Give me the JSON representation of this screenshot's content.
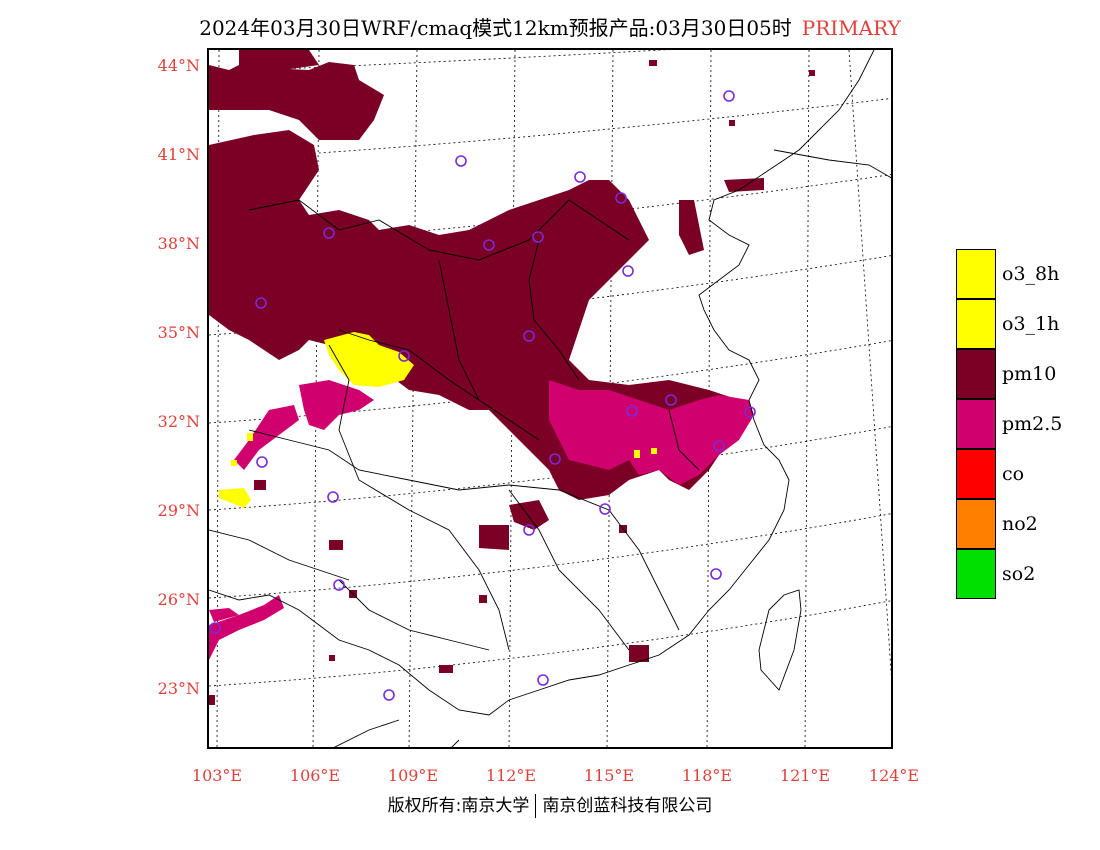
{
  "title": {
    "main": "2024年03月30日WRF/cmaq模式12km预报产品:03月30日05时",
    "tag": "PRIMARY"
  },
  "latitude_labels": [
    "44°N",
    "41°N",
    "38°N",
    "35°N",
    "32°N",
    "29°N",
    "26°N",
    "23°N"
  ],
  "longitude_labels": [
    "103°E",
    "106°E",
    "109°E",
    "112°E",
    "115°E",
    "118°E",
    "121°E",
    "124°E"
  ],
  "legend": [
    {
      "label": "o3_8h",
      "color": "#ffff00"
    },
    {
      "label": "o3_1h",
      "color": "#ffff00"
    },
    {
      "label": "pm10",
      "color": "#7a0025"
    },
    {
      "label": "pm2.5",
      "color": "#d0006e"
    },
    {
      "label": "co",
      "color": "#ff0000"
    },
    {
      "label": "no2",
      "color": "#ff7f00"
    },
    {
      "label": "so2",
      "color": "#00e000"
    }
  ],
  "footer": {
    "left": "版权所有:南京大学",
    "right": "南京创蓝科技有限公司"
  },
  "colors": {
    "pm10": "#7a0025",
    "pm25": "#d0006e",
    "o3": "#ffff00",
    "station": "#7a2ad8",
    "axis_label": "#e0403a"
  }
}
